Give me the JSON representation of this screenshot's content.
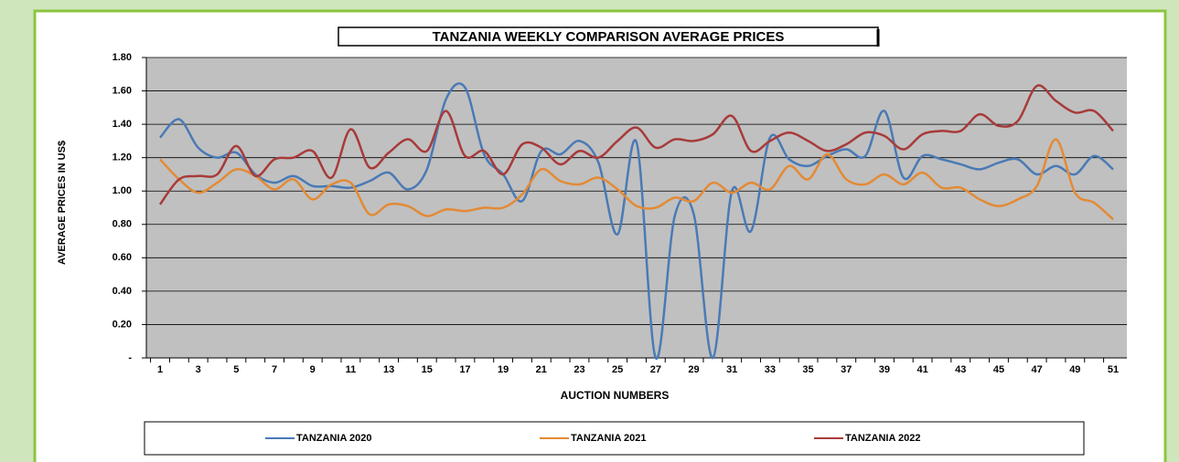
{
  "chart_data": {
    "type": "line",
    "title": "TANZANIA WEEKLY COMPARISON AVERAGE PRICES",
    "x_label": "AUCTION NUMBERS",
    "y_label": "AVERAGE PRICES IN US$",
    "categories": [
      "1",
      null,
      "3",
      null,
      "5",
      null,
      "7",
      null,
      "9",
      null,
      "11",
      null,
      "13",
      null,
      "15",
      null,
      "17",
      null,
      "19",
      null,
      "21",
      null,
      "23",
      null,
      "25",
      null,
      "27",
      null,
      "29",
      null,
      "31",
      null,
      "33",
      null,
      "35",
      null,
      "37",
      null,
      "39",
      null,
      "41",
      null,
      "43",
      null,
      "45",
      null,
      "47",
      null,
      "49",
      null,
      "51"
    ],
    "series": [
      {
        "name": "TANZANIA 2020",
        "color": "#4a7ab5",
        "values": [
          1.32,
          1.43,
          1.26,
          1.2,
          1.23,
          1.1,
          1.05,
          1.09,
          1.03,
          1.03,
          1.02,
          1.06,
          1.11,
          1.01,
          1.13,
          1.55,
          1.62,
          1.22,
          1.1,
          0.94,
          1.24,
          1.22,
          1.3,
          1.17,
          0.74,
          1.29,
          0,
          0.85,
          0.86,
          0,
          1.0,
          0.76,
          1.32,
          1.19,
          1.15,
          1.21,
          1.25,
          1.21,
          1.48,
          1.08,
          1.21,
          1.19,
          1.16,
          1.13,
          1.17,
          1.19,
          1.1,
          1.15,
          1.1,
          1.21,
          1.13
        ]
      },
      {
        "name": "TANZANIA 2021",
        "color": "#e38a35",
        "values": [
          1.19,
          1.07,
          0.99,
          1.05,
          1.13,
          1.09,
          1.01,
          1.07,
          0.95,
          1.04,
          1.05,
          0.86,
          0.92,
          0.91,
          0.85,
          0.89,
          0.88,
          0.9,
          0.9,
          0.98,
          1.13,
          1.06,
          1.04,
          1.08,
          1.01,
          0.91,
          0.9,
          0.96,
          0.94,
          1.05,
          0.99,
          1.05,
          1.01,
          1.15,
          1.07,
          1.22,
          1.07,
          1.04,
          1.1,
          1.04,
          1.11,
          1.02,
          1.02,
          0.95,
          0.91,
          0.95,
          1.03,
          1.31,
          0.99,
          0.93,
          0.83
        ]
      },
      {
        "name": "TANZANIA 2022",
        "color": "#a83a3a",
        "values": [
          0.92,
          1.07,
          1.09,
          1.1,
          1.27,
          1.09,
          1.19,
          1.2,
          1.24,
          1.08,
          1.37,
          1.14,
          1.23,
          1.31,
          1.24,
          1.48,
          1.21,
          1.24,
          1.1,
          1.28,
          1.26,
          1.16,
          1.24,
          1.2,
          1.3,
          1.38,
          1.26,
          1.31,
          1.3,
          1.34,
          1.45,
          1.24,
          1.3,
          1.35,
          1.3,
          1.24,
          1.28,
          1.35,
          1.33,
          1.25,
          1.34,
          1.36,
          1.36,
          1.46,
          1.39,
          1.42,
          1.63,
          1.54,
          1.47,
          1.48,
          1.36
        ]
      }
    ],
    "ylim": [
      0,
      1.8
    ],
    "yticks": [
      {
        "value": 0,
        "label": "-"
      },
      {
        "value": 0.2,
        "label": "0.20"
      },
      {
        "value": 0.4,
        "label": "0.40"
      },
      {
        "value": 0.6,
        "label": "0.60"
      },
      {
        "value": 0.8,
        "label": "0.80"
      },
      {
        "value": 1.0,
        "label": "1.00"
      },
      {
        "value": 1.2,
        "label": "1.20"
      },
      {
        "value": 1.4,
        "label": "1.40"
      },
      {
        "value": 1.6,
        "label": "1.60"
      },
      {
        "value": 1.8,
        "label": "1.80"
      }
    ],
    "grid": true,
    "legend": "bottom"
  }
}
